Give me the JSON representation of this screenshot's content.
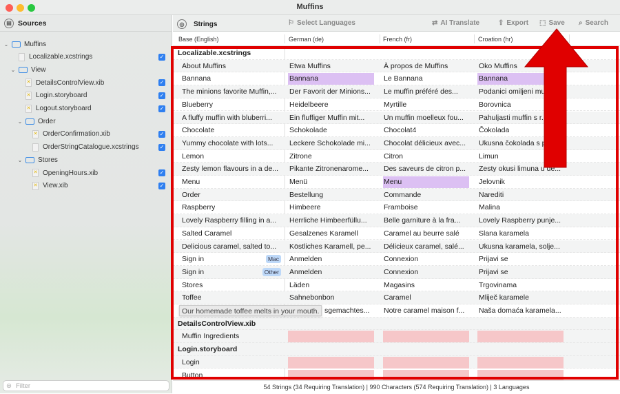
{
  "window": {
    "title": "Muffins"
  },
  "sidebar": {
    "title": "Sources",
    "filter_placeholder": "Filter",
    "items": [
      {
        "label": "Muffins",
        "type": "folder",
        "level": 0,
        "expanded": true
      },
      {
        "label": "Localizable.xcstrings",
        "type": "file",
        "level": 1,
        "checked": true
      },
      {
        "label": "View",
        "type": "folder",
        "level": 1,
        "expanded": true
      },
      {
        "label": "DetailsControlView.xib",
        "type": "file",
        "level": 2,
        "checked": true
      },
      {
        "label": "Login.storyboard",
        "type": "file",
        "level": 2,
        "checked": true
      },
      {
        "label": "Logout.storyboard",
        "type": "file",
        "level": 2,
        "checked": true
      },
      {
        "label": "Order",
        "type": "folder",
        "level": 2,
        "expanded": true
      },
      {
        "label": "OrderConfirmation.xib",
        "type": "file",
        "level": 3,
        "checked": true
      },
      {
        "label": "OrderStringCatalogue.xcstrings",
        "type": "file",
        "level": 3,
        "checked": true
      },
      {
        "label": "Stores",
        "type": "folder",
        "level": 2,
        "expanded": true
      },
      {
        "label": "OpeningHours.xib",
        "type": "file",
        "level": 3,
        "checked": true
      },
      {
        "label": "View.xib",
        "type": "file",
        "level": 3,
        "checked": true
      }
    ]
  },
  "toolbar": {
    "title": "Strings",
    "select_languages": "Select Languages",
    "ai_translate": "AI Translate",
    "export": "Export",
    "save": "Save",
    "search": "Search"
  },
  "columns": [
    "Base (English)",
    "German (de)",
    "French (fr)",
    "Croation (hr)"
  ],
  "colors": {
    "needs_review": "#dcc0f3",
    "missing": "#f6c7c9",
    "annotation": "#e00000",
    "badge": "#bdd8f8"
  },
  "rows": [
    {
      "section": "Localizable.xcstrings"
    },
    {
      "cells": [
        "About Muffins",
        "Etwa Muffins",
        "À propos de Muffins",
        "Oko Muffins"
      ]
    },
    {
      "cells": [
        "Bannana",
        "Bannana",
        "Le Bannana",
        "Bannana"
      ],
      "review": [
        1,
        3
      ]
    },
    {
      "cells": [
        "The minions favorite Muffin,...",
        "Der Favorit der Minions...",
        "Le muffin préféré des...",
        "Podanici omiljeni mu..."
      ]
    },
    {
      "cells": [
        "Blueberry",
        "Heidelbeere",
        "Myrtille",
        "Borovnica"
      ]
    },
    {
      "cells": [
        "A fluffy muffin with bluberri...",
        "Ein fluffiger Muffin mit...",
        "Un muffin moelleux fou...",
        "Pahuljasti muffin s r..."
      ]
    },
    {
      "cells": [
        "Chocolate",
        "Schokolade",
        "Chocolat4",
        "Čokolada"
      ]
    },
    {
      "cells": [
        "Yummy chocolate with lots...",
        "Leckere Schokolade mi...",
        "Chocolat délicieux avec...",
        "Ukusna čokolada s p..."
      ]
    },
    {
      "cells": [
        "Lemon",
        "Zitrone",
        "Citron",
        "Limun"
      ]
    },
    {
      "cells": [
        "Zesty lemon flavours in a de...",
        "Pikante Zitronenarome...",
        "Des saveurs de citron p...",
        "Zesty okusi limuna u de..."
      ]
    },
    {
      "cells": [
        "Menu",
        "Menü",
        "Menu",
        "Jelovnik"
      ],
      "review": [
        2
      ]
    },
    {
      "cells": [
        "Order",
        "Bestellung",
        "Commande",
        "Narediti"
      ]
    },
    {
      "cells": [
        "Raspberry",
        "Himbeere",
        "Framboise",
        "Malina"
      ]
    },
    {
      "cells": [
        "Lovely Raspberry filling in a...",
        "Herrliche Himbeerfüllu...",
        "Belle garniture à la fra...",
        "Lovely Raspberry punje..."
      ]
    },
    {
      "cells": [
        "Salted Caramel",
        "Gesalzenes Karamell",
        "Caramel au beurre salé",
        "Slana karamela"
      ]
    },
    {
      "cells": [
        "Delicious caramel, salted to...",
        "Köstliches Karamell, pe...",
        "Délicieux caramel, salé...",
        "Ukusna karamela, solje..."
      ]
    },
    {
      "cells": [
        "Sign in",
        "Anmelden",
        "Connexion",
        "Prijavi se"
      ],
      "badge": "Mac"
    },
    {
      "cells": [
        "Sign in",
        "Anmelden",
        "Connexion",
        "Prijavi se"
      ],
      "badge": "Other"
    },
    {
      "cells": [
        "Stores",
        "Läden",
        "Magasins",
        "Trgovinama"
      ]
    },
    {
      "cells": [
        "Toffee",
        "Sahnebonbon",
        "Caramel",
        "Mliječ karamele"
      ]
    },
    {
      "cells": [
        "",
        "sgemachtes...",
        "Notre caramel maison f...",
        "Naša domaća karamela..."
      ],
      "tooltip": "Our homemade toffee melts in your mouth."
    },
    {
      "section": "DetailsControlView.xib"
    },
    {
      "cells": [
        "Muffin Ingredients",
        "",
        "",
        ""
      ],
      "missing": [
        1,
        2,
        3
      ]
    },
    {
      "section": "Login.storyboard"
    },
    {
      "cells": [
        "Login",
        "",
        "",
        ""
      ],
      "missing": [
        1,
        2,
        3
      ]
    },
    {
      "cells": [
        "Button",
        "",
        "",
        ""
      ],
      "missing": [
        1,
        2,
        3
      ]
    }
  ],
  "status": "54 Strings (34 Requiring Translation) | 990 Characters (574 Requiring Translation) | 3 Languages"
}
